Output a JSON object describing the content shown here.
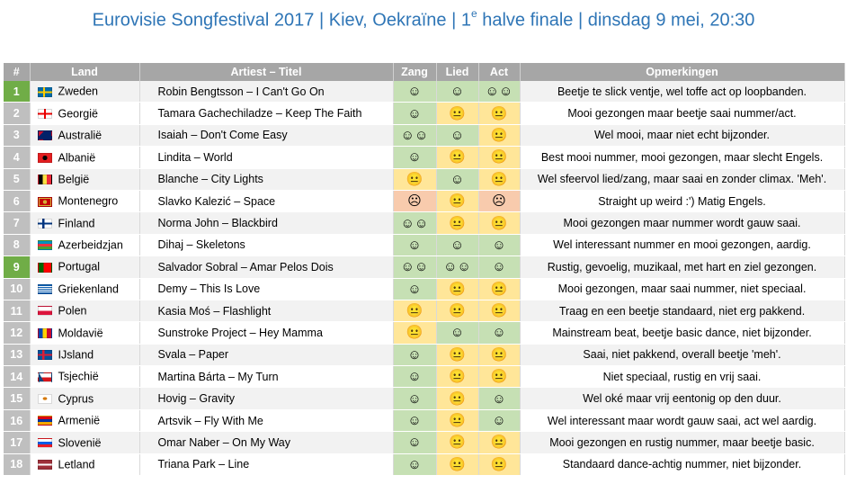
{
  "title": {
    "prefix": "Eurovisie Songfestival 2017 | Kiev, Oekraïne | 1",
    "sup": "e",
    "suffix": " halve finale | dinsdag 9 mei, 20:30"
  },
  "columns": {
    "num": "#",
    "land": "Land",
    "artist": "Artiest – Titel",
    "zang": "Zang",
    "lied": "Lied",
    "act": "Act",
    "notes": "Opmerkingen"
  },
  "colors": {
    "header": "#a6a6a6",
    "rank_default": "#bfbfbf",
    "rank_highlight": "#70ad47",
    "good": "#c6e0b4",
    "neutral": "#ffe699",
    "bad": "#f8cbad",
    "title": "#2e75b6"
  },
  "faces": {
    "happy": "☺",
    "very_happy": "☺☺",
    "neutral": "😐",
    "sad": "☹"
  },
  "rows": [
    {
      "num": "1",
      "rank": "highlight",
      "flag": "sweden",
      "land": "Zweden",
      "artist": "Robin Bengtsson – I Can't Go On",
      "zang": "happy",
      "lied": "happy",
      "act": "very_happy",
      "notes": "Beetje te slick ventje, wel toffe act op loopbanden."
    },
    {
      "num": "2",
      "rank": "default",
      "flag": "georgia",
      "land": "Georgië",
      "artist": "Tamara Gachechiladze – Keep The Faith",
      "zang": "happy",
      "lied": "neutral",
      "act": "neutral",
      "notes": "Mooi gezongen maar beetje saai nummer/act."
    },
    {
      "num": "3",
      "rank": "default",
      "flag": "australia",
      "land": "Australië",
      "artist": "Isaiah – Don't Come Easy",
      "zang": "very_happy",
      "lied": "happy",
      "act": "neutral",
      "notes": "Wel mooi, maar niet echt bijzonder."
    },
    {
      "num": "4",
      "rank": "default",
      "flag": "albania",
      "land": "Albanië",
      "artist": "Lindita – World",
      "zang": "happy",
      "lied": "neutral",
      "act": "neutral",
      "notes": "Best mooi nummer, mooi gezongen, maar slecht Engels."
    },
    {
      "num": "5",
      "rank": "default",
      "flag": "belgium",
      "land": "België",
      "artist": "Blanche – City Lights",
      "zang": "neutral",
      "lied": "happy",
      "act": "neutral",
      "notes": "Wel sfeervol lied/zang, maar saai en zonder climax. 'Meh'."
    },
    {
      "num": "6",
      "rank": "default",
      "flag": "montenegro",
      "land": "Montenegro",
      "artist": "Slavko Kalezić – Space",
      "zang": "sad",
      "lied": "neutral",
      "act": "sad",
      "notes": "Straight up weird :') Matig Engels."
    },
    {
      "num": "7",
      "rank": "default",
      "flag": "finland",
      "land": "Finland",
      "artist": "Norma John – Blackbird",
      "zang": "very_happy",
      "lied": "neutral",
      "act": "neutral",
      "notes": "Mooi gezongen maar nummer wordt gauw saai."
    },
    {
      "num": "8",
      "rank": "default",
      "flag": "azerbaijan",
      "land": "Azerbeidzjan",
      "artist": "Dihaj – Skeletons",
      "zang": "happy",
      "lied": "happy",
      "act": "happy",
      "notes": "Wel interessant nummer en mooi gezongen, aardig."
    },
    {
      "num": "9",
      "rank": "highlight",
      "flag": "portugal",
      "land": "Portugal",
      "artist": "Salvador Sobral – Amar Pelos Dois",
      "zang": "very_happy",
      "lied": "very_happy",
      "act": "happy",
      "notes": "Rustig, gevoelig, muzikaal, met hart en ziel gezongen."
    },
    {
      "num": "10",
      "rank": "default",
      "flag": "greece",
      "land": "Griekenland",
      "artist": "Demy – This Is Love",
      "zang": "happy",
      "lied": "neutral",
      "act": "neutral",
      "notes": "Mooi gezongen, maar saai nummer, niet speciaal."
    },
    {
      "num": "11",
      "rank": "default",
      "flag": "poland",
      "land": "Polen",
      "artist": "Kasia Moś – Flashlight",
      "zang": "neutral",
      "lied": "neutral",
      "act": "neutral",
      "notes": "Traag en een beetje standaard, niet erg pakkend."
    },
    {
      "num": "12",
      "rank": "default",
      "flag": "moldova",
      "land": "Moldavië",
      "artist": "Sunstroke Project – Hey Mamma",
      "zang": "neutral",
      "lied": "happy",
      "act": "happy",
      "notes": "Mainstream beat, beetje basic dance, niet bijzonder."
    },
    {
      "num": "13",
      "rank": "default",
      "flag": "iceland",
      "land": "IJsland",
      "artist": "Svala – Paper",
      "zang": "happy",
      "lied": "neutral",
      "act": "neutral",
      "notes": "Saai, niet pakkend, overall beetje 'meh'."
    },
    {
      "num": "14",
      "rank": "default",
      "flag": "czech",
      "land": "Tsjechië",
      "artist": "Martina Bárta – My Turn",
      "zang": "happy",
      "lied": "neutral",
      "act": "neutral",
      "notes": "Niet speciaal, rustig en vrij saai."
    },
    {
      "num": "15",
      "rank": "default",
      "flag": "cyprus",
      "land": "Cyprus",
      "artist": "Hovig – Gravity",
      "zang": "happy",
      "lied": "neutral",
      "act": "happy",
      "notes": "Wel oké maar vrij eentonig op den duur."
    },
    {
      "num": "16",
      "rank": "default",
      "flag": "armenia",
      "land": "Armenië",
      "artist": "Artsvik – Fly With Me",
      "zang": "happy",
      "lied": "neutral",
      "act": "happy",
      "notes": "Wel interessant maar wordt gauw saai, act wel aardig."
    },
    {
      "num": "17",
      "rank": "default",
      "flag": "slovenia",
      "land": "Slovenië",
      "artist": "Omar Naber – On My Way",
      "zang": "happy",
      "lied": "neutral",
      "act": "neutral",
      "notes": "Mooi gezongen en rustig nummer, maar beetje basic."
    },
    {
      "num": "18",
      "rank": "default",
      "flag": "latvia",
      "land": "Letland",
      "artist": "Triana Park – Line",
      "zang": "happy",
      "lied": "neutral",
      "act": "neutral",
      "notes": "Standaard dance-achtig nummer, niet bijzonder."
    }
  ]
}
